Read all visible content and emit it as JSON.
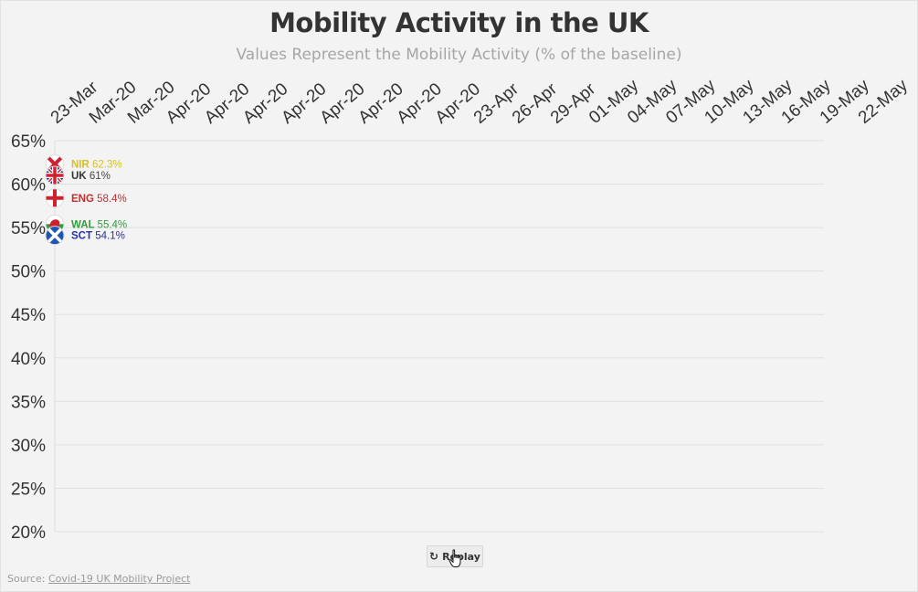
{
  "header": {
    "title": "Mobility Activity in the UK",
    "subtitle": "Values Represent the Mobility Activity (% of the baseline)"
  },
  "chart_data": {
    "type": "line",
    "title": "Mobility Activity in the UK",
    "subtitle": "Values Represent the Mobility Activity (% of the baseline)",
    "x_tick_labels": [
      "23-Mar",
      "Mar-20",
      "Mar-20",
      "Apr-20",
      "Apr-20",
      "Apr-20",
      "Apr-20",
      "Apr-20",
      "Apr-20",
      "Apr-20",
      "Apr-20",
      "23-Apr",
      "26-Apr",
      "29-Apr",
      "01-May",
      "04-May",
      "07-May",
      "10-May",
      "13-May",
      "16-May",
      "19-May",
      "22-May"
    ],
    "y_tick_labels": [
      "65%",
      "60%",
      "55%",
      "50%",
      "45%",
      "40%",
      "35%",
      "30%",
      "25%",
      "20%"
    ],
    "ylim": [
      20,
      65
    ],
    "grid": true,
    "series": [
      {
        "name": "NIR",
        "values": [
          62.3
        ],
        "value_label": "62.3%",
        "color": "#d4c12a",
        "flag": "northern-ireland-flag-icon"
      },
      {
        "name": "UK",
        "values": [
          61
        ],
        "value_label": "61%",
        "color": "#333333",
        "flag": "uk-flag-icon"
      },
      {
        "name": "ENG",
        "values": [
          58.4
        ],
        "value_label": "58.4%",
        "color": "#cc2b2b",
        "flag": "england-flag-icon"
      },
      {
        "name": "WAL",
        "values": [
          55.4
        ],
        "value_label": "55.4%",
        "color": "#2f9e3c",
        "flag": "wales-flag-icon"
      },
      {
        "name": "SCT",
        "values": [
          54.1
        ],
        "value_label": "54.1%",
        "color": "#2b2fa8",
        "flag": "scotland-flag-icon"
      }
    ]
  },
  "controls": {
    "replay_label": "Replay",
    "replay_icon": "replay-icon"
  },
  "footer": {
    "source_prefix": "Source: ",
    "source_link": "Covid-19 UK Mobility Project"
  }
}
